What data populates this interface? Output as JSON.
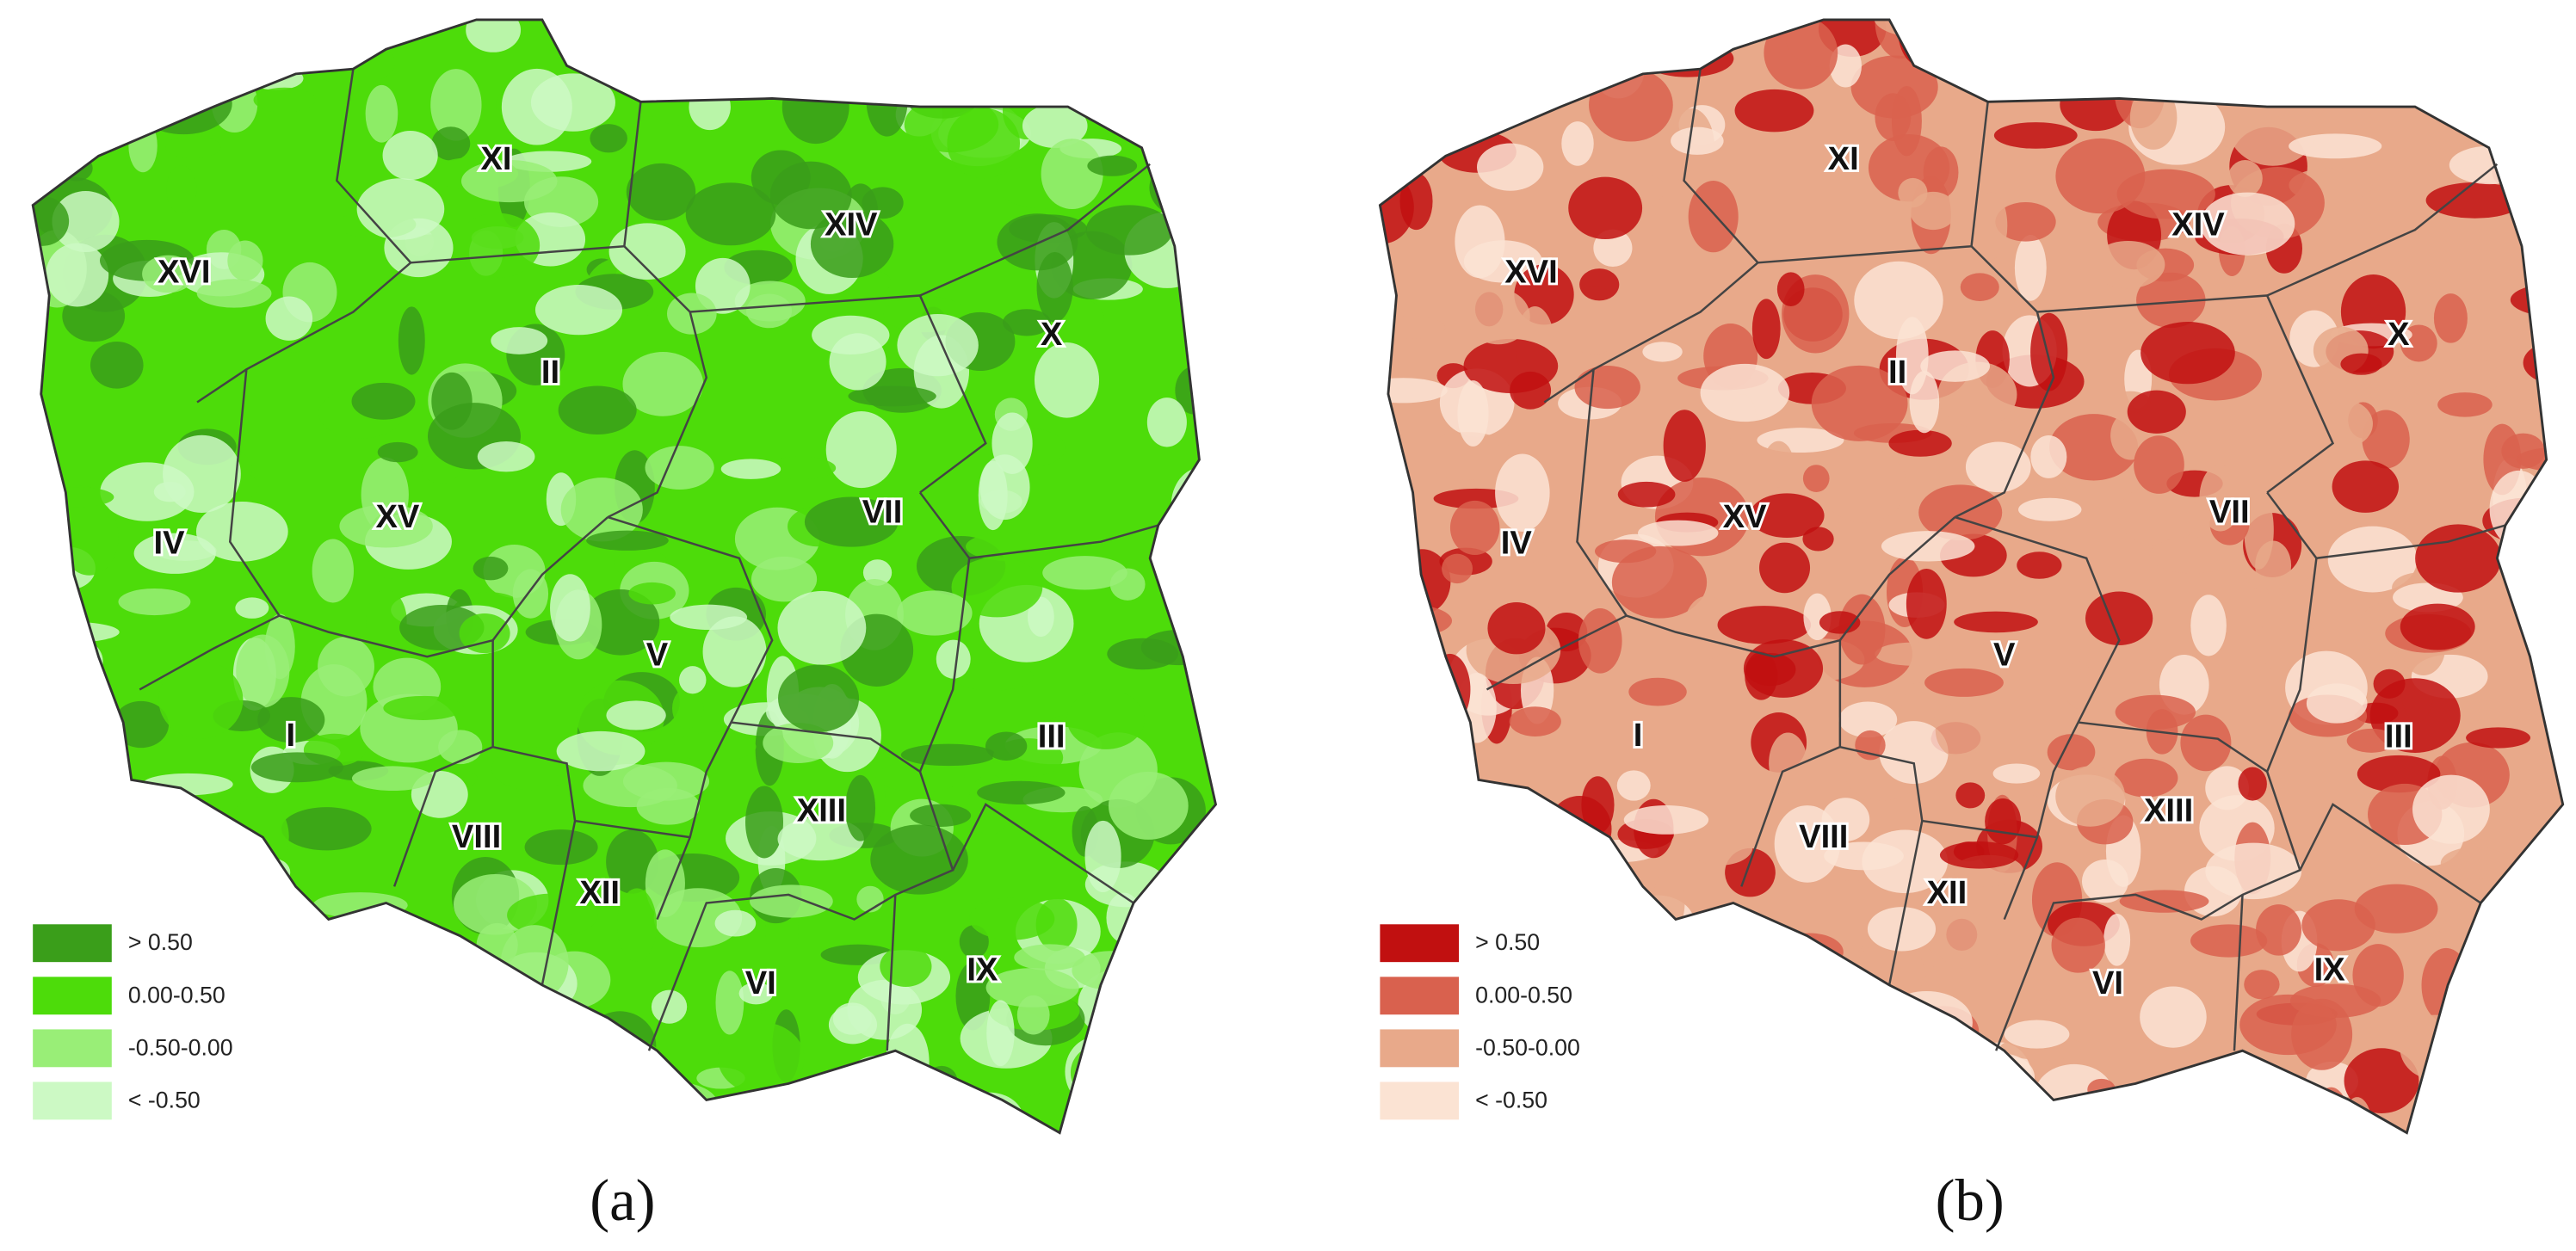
{
  "maps": [
    {
      "caption": "(a)",
      "regions": [
        "XI",
        "XIV",
        "XVI",
        "X",
        "II",
        "XV",
        "VII",
        "IV",
        "V",
        "I",
        "III",
        "VIII",
        "XIII",
        "XII",
        "VI",
        "IX"
      ],
      "legend": [
        {
          "label": "> 0.50",
          "color": "#3a9e1a"
        },
        {
          "label": "0.00-0.50",
          "color": "#4ddc0a"
        },
        {
          "label": "-0.50-0.00",
          "color": "#99ee77"
        },
        {
          "label": "< -0.50",
          "color": "#ccf9c4"
        }
      ]
    },
    {
      "caption": "(b)",
      "regions": [
        "XI",
        "XIV",
        "XVI",
        "X",
        "II",
        "XV",
        "VII",
        "IV",
        "V",
        "I",
        "III",
        "VIII",
        "XIII",
        "XII",
        "VI",
        "IX"
      ],
      "legend": [
        {
          "label": "> 0.50",
          "color": "#c11010"
        },
        {
          "label": "0.00-0.50",
          "color": "#d9614e"
        },
        {
          "label": "-0.50-0.00",
          "color": "#e8a98a"
        },
        {
          "label": "< -0.50",
          "color": "#fbe3d3"
        }
      ]
    }
  ]
}
